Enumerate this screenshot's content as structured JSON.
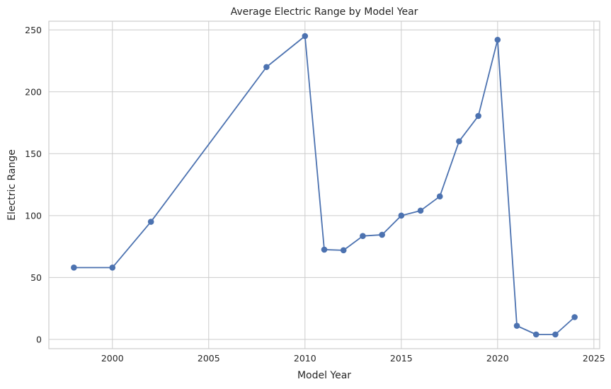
{
  "chart_data": {
    "type": "line",
    "title": "Average Electric Range by Model Year",
    "xlabel": "Model Year",
    "ylabel": "Electric Range",
    "xlim": [
      1996.7,
      2025.3
    ],
    "ylim": [
      -7.5,
      257
    ],
    "xticks": [
      2000,
      2005,
      2010,
      2015,
      2020,
      2025
    ],
    "yticks": [
      0,
      50,
      100,
      150,
      200,
      250
    ],
    "grid": true,
    "legend": "none",
    "colors": {
      "series": "#4c72b0",
      "grid": "#cccccc",
      "text": "#262626"
    },
    "series": [
      {
        "x": [
          1998,
          2000,
          2002,
          2008,
          2010,
          2011,
          2012,
          2013,
          2014,
          2015,
          2016,
          2017,
          2018,
          2019,
          2020,
          2021,
          2022,
          2023,
          2024
        ],
        "values": [
          58,
          58,
          95,
          220,
          245,
          72.5,
          72,
          83.5,
          84.5,
          100,
          104,
          115.5,
          160,
          180.5,
          242,
          11,
          4,
          4,
          18
        ]
      }
    ]
  }
}
